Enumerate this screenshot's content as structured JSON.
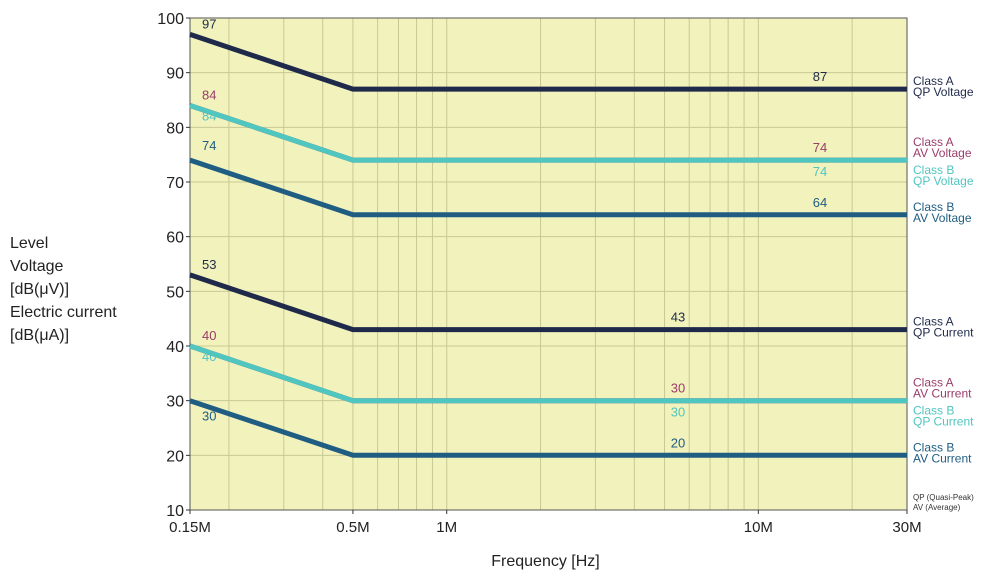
{
  "chart_data": {
    "type": "line",
    "xlabel": "Frequency [Hz]",
    "ylabel_lines": [
      "Level",
      "Voltage",
      "[dB(μV)]",
      "Electric current",
      "[dB(μA)]"
    ],
    "x_scale": "log",
    "xlim_mhz": [
      0.15,
      30
    ],
    "ylim": [
      10,
      100
    ],
    "yticks": [
      10,
      20,
      30,
      40,
      50,
      60,
      70,
      80,
      90,
      100
    ],
    "xticks_mhz": [
      0.15,
      0.5,
      1,
      10,
      30
    ],
    "xtick_labels": [
      "0.15M",
      "0.5M",
      "1M",
      "10M",
      "30M"
    ],
    "grid": true,
    "background_color": "#f2f2bc",
    "series": [
      {
        "name": "Class A QP Voltage",
        "label_lines": [
          "Class A",
          "QP  Voltage"
        ],
        "color": "#1f2a4a",
        "x_mhz": [
          0.15,
          0.5,
          30
        ],
        "values": [
          97,
          87,
          87
        ],
        "start_label": "97",
        "end_label": "87"
      },
      {
        "name": "Class A AV Voltage",
        "label_lines": [
          "Class A",
          "AV  Voltage"
        ],
        "color": "#9a3d6a",
        "x_mhz": [
          0.15,
          0.5,
          30
        ],
        "values": [
          84,
          74,
          74
        ],
        "start_label": "84",
        "end_label": "74"
      },
      {
        "name": "Class B QP Voltage",
        "label_lines": [
          "Class B",
          "QP  Voltage"
        ],
        "color": "#4fc6c0",
        "x_mhz": [
          0.15,
          0.5,
          30
        ],
        "values": [
          84,
          74,
          74
        ],
        "start_label": "84",
        "end_label": "74"
      },
      {
        "name": "Class B AV Voltage",
        "label_lines": [
          "Class B",
          "AV  Voltage"
        ],
        "color": "#1f5d82",
        "x_mhz": [
          0.15,
          0.5,
          30
        ],
        "values": [
          74,
          64,
          64
        ],
        "start_label": "74",
        "end_label": "64"
      },
      {
        "name": "Class A QP Current",
        "label_lines": [
          "Class A",
          "QP  Current"
        ],
        "color": "#1f2a4a",
        "x_mhz": [
          0.15,
          0.5,
          30
        ],
        "values": [
          53,
          43,
          43
        ],
        "start_label": "53",
        "end_label": "43"
      },
      {
        "name": "Class A AV Current",
        "label_lines": [
          "Class A",
          "AV  Current"
        ],
        "color": "#9a3d6a",
        "x_mhz": [
          0.15,
          0.5,
          30
        ],
        "values": [
          40,
          30,
          30
        ],
        "start_label": "40",
        "end_label": "30"
      },
      {
        "name": "Class B QP Current",
        "label_lines": [
          "Class B",
          "QP  Current"
        ],
        "color": "#4fc6c0",
        "x_mhz": [
          0.15,
          0.5,
          30
        ],
        "values": [
          40,
          30,
          30
        ],
        "start_label": "40",
        "end_label": "30"
      },
      {
        "name": "Class B AV Current",
        "label_lines": [
          "Class B",
          "AV  Current"
        ],
        "color": "#1f5d82",
        "x_mhz": [
          0.15,
          0.5,
          30
        ],
        "values": [
          30,
          20,
          20
        ],
        "start_label": "30",
        "end_label": "20"
      }
    ],
    "footnotes": [
      "QP  (Quasi-Peak)",
      "AV  (Average)"
    ]
  }
}
